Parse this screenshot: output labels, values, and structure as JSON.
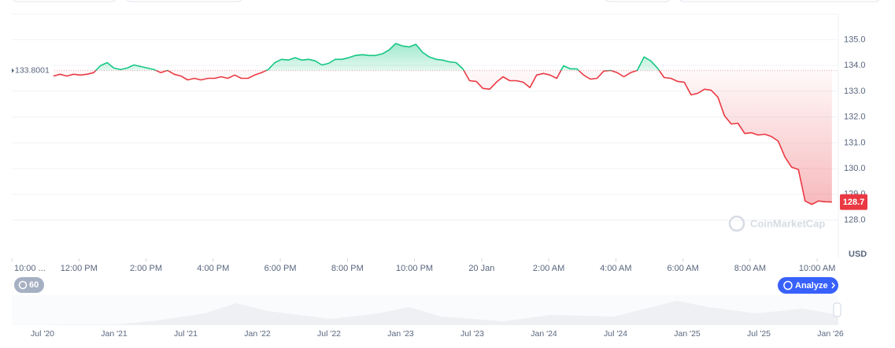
{
  "chart_data": {
    "type": "line",
    "x": [
      11.24,
      11.44,
      11.64,
      11.84,
      12.04,
      12.24,
      12.44,
      12.64,
      12.84,
      13.04,
      13.24,
      13.44,
      13.64,
      13.84,
      14.04,
      14.24,
      14.44,
      14.64,
      14.84,
      15.04,
      15.24,
      15.44,
      15.64,
      15.84,
      16.04,
      16.24,
      16.44,
      16.64,
      16.84,
      17.04,
      17.24,
      17.44,
      17.64,
      17.84,
      18.04,
      18.24,
      18.44,
      18.64,
      18.84,
      19.04,
      19.24,
      19.44,
      19.64,
      19.84,
      20.04,
      20.24,
      20.44,
      20.64,
      20.84,
      21.04,
      21.24,
      21.44,
      21.64,
      21.84,
      22.04,
      22.24,
      22.44,
      22.64,
      22.84,
      23.04,
      23.24,
      23.44,
      23.64,
      23.84,
      24.04,
      24.24,
      24.44,
      24.64,
      24.84,
      25.04,
      25.24,
      25.44,
      25.64,
      25.84,
      26.04,
      26.24,
      26.44,
      26.64,
      26.84,
      27.04,
      27.24,
      27.44,
      27.64,
      27.84,
      28.04,
      28.24,
      28.44,
      28.64,
      28.84,
      29.04,
      29.24,
      29.44,
      29.64,
      29.84,
      30.04,
      30.24,
      30.44,
      30.64,
      30.84,
      31.04,
      31.24,
      31.44,
      31.64,
      31.84,
      32.04,
      32.24,
      32.44,
      32.64,
      32.84,
      33.04,
      33.24,
      33.44,
      33.64,
      33.84,
      34.04,
      34.24,
      34.44
    ],
    "series": [
      {
        "name": "Price",
        "color_up": "#16c784",
        "color_down": "#ea3943",
        "values": [
          133.59,
          133.66,
          133.59,
          133.66,
          133.63,
          133.66,
          133.72,
          133.99,
          134.11,
          133.9,
          133.84,
          133.9,
          134.02,
          133.96,
          133.9,
          133.84,
          133.72,
          133.81,
          133.66,
          133.59,
          133.44,
          133.5,
          133.44,
          133.5,
          133.5,
          133.56,
          133.5,
          133.63,
          133.5,
          133.5,
          133.63,
          133.72,
          133.84,
          134.11,
          134.24,
          134.21,
          134.3,
          134.21,
          134.24,
          134.18,
          134.02,
          134.08,
          134.24,
          134.24,
          134.3,
          134.39,
          134.42,
          134.39,
          134.39,
          134.45,
          134.6,
          134.85,
          134.76,
          134.72,
          134.82,
          134.51,
          134.33,
          134.24,
          134.21,
          134.14,
          134.11,
          133.87,
          133.41,
          133.38,
          133.11,
          133.08,
          133.35,
          133.56,
          133.41,
          133.41,
          133.35,
          133.14,
          133.63,
          133.69,
          133.63,
          133.5,
          133.99,
          133.87,
          133.87,
          133.63,
          133.47,
          133.5,
          133.78,
          133.81,
          133.72,
          133.56,
          133.72,
          133.81,
          134.33,
          134.18,
          133.9,
          133.53,
          133.5,
          133.38,
          133.35,
          132.86,
          132.92,
          133.08,
          133.04,
          132.77,
          132.04,
          131.73,
          131.76,
          131.36,
          131.39,
          131.3,
          131.33,
          131.24,
          131.06,
          130.45,
          130.05,
          129.96,
          128.74,
          128.61,
          128.74,
          128.71,
          128.7
        ]
      }
    ],
    "baseline": 133.8001,
    "current_price": 128.7,
    "currency": "USD",
    "watermark": "CoinMarketCap",
    "xlim": [
      10.0,
      34.63
    ],
    "xticks": [
      {
        "value": 10,
        "label": "10:00 ..."
      },
      {
        "value": 12,
        "label": "12:00 PM"
      },
      {
        "value": 14,
        "label": "2:00 PM"
      },
      {
        "value": 16,
        "label": "4:00 PM"
      },
      {
        "value": 18,
        "label": "6:00 PM"
      },
      {
        "value": 20,
        "label": "8:00 PM"
      },
      {
        "value": 22,
        "label": "10:00 PM"
      },
      {
        "value": 24,
        "label": "20 Jan"
      },
      {
        "value": 26,
        "label": "2:00 AM"
      },
      {
        "value": 28,
        "label": "4:00 AM"
      },
      {
        "value": 30,
        "label": "6:00 AM"
      },
      {
        "value": 32,
        "label": "8:00 AM"
      },
      {
        "value": 34,
        "label": "10:00 AM"
      }
    ],
    "ylim": [
      126.52,
      135.99
    ],
    "yticks": [
      {
        "value": 128,
        "label": "128.0"
      },
      {
        "value": 129,
        "label": "129.0"
      },
      {
        "value": 130,
        "label": "130.0"
      },
      {
        "value": 131,
        "label": "131.0"
      },
      {
        "value": 132,
        "label": "132.0"
      },
      {
        "value": 133,
        "label": "133.0"
      },
      {
        "value": 134,
        "label": "134.0"
      },
      {
        "value": 135,
        "label": "135.0"
      }
    ],
    "grid": true
  },
  "controls": {
    "interval": "60",
    "analyze": "Analyze"
  },
  "navigator": {
    "labels": [
      "Jul '20",
      "Jan '21",
      "Jul '21",
      "Jan '22",
      "Jul '22",
      "Jan '23",
      "Jul '23",
      "Jan '24",
      "Jul '24",
      "Jan '25",
      "Jul '25",
      "Jan '26"
    ]
  }
}
